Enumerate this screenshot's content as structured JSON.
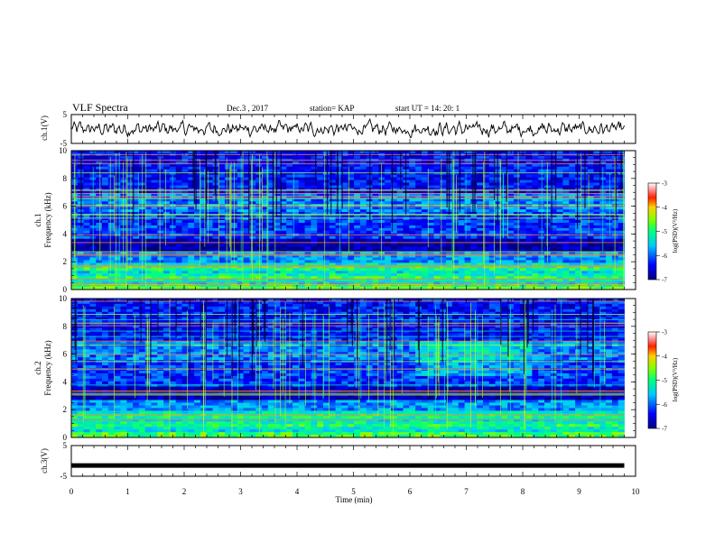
{
  "header": {
    "title": "VLF Spectra",
    "date": "Dec.3  , 2017",
    "station": "station= KAP",
    "start": "start  UT =   14: 20: 1"
  },
  "chart_data": [
    {
      "type": "line",
      "panel": "ch1-waveform",
      "ylabel": "ch.1(V)",
      "ylim": [
        -5,
        5
      ],
      "yticks": [
        "5",
        "-5"
      ],
      "xlim": [
        0,
        10
      ],
      "series_color": "#000000"
    },
    {
      "type": "heatmap",
      "panel": "ch1-spectrogram",
      "ylabel": "ch.1",
      "ylabel2": "Frequency (kHz)",
      "ylim": [
        0,
        10
      ],
      "yticks": [
        "0",
        "2",
        "4",
        "6",
        "8",
        "10"
      ],
      "xlim": [
        0,
        10
      ],
      "colorbar": {
        "label": "log(PSD)(V²/Hz)",
        "range": [
          -7,
          -3
        ],
        "ticks": [
          "-3",
          "-4",
          "-5",
          "-6",
          "-7"
        ]
      }
    },
    {
      "type": "heatmap",
      "panel": "ch2-spectrogram",
      "ylabel": "ch.2",
      "ylabel2": "Frequency (kHz)",
      "ylim": [
        0,
        10
      ],
      "yticks": [
        "0",
        "2",
        "4",
        "6",
        "8",
        "10"
      ],
      "xlim": [
        0,
        10
      ],
      "colorbar": {
        "label": "log(PSD)(V²/Hz)",
        "range": [
          -7,
          -3
        ],
        "ticks": [
          "-3",
          "-4",
          "-5",
          "-6",
          "-7"
        ]
      }
    },
    {
      "type": "line",
      "panel": "ch3-waveform",
      "ylabel": "ch.3(V)",
      "ylim": [
        -5,
        5
      ],
      "yticks": [
        "5",
        "-5"
      ],
      "xlim": [
        0,
        10
      ],
      "constant_value": -1.5
    }
  ],
  "xaxis": {
    "label": "Time (min)",
    "ticks": [
      "0",
      "1",
      "2",
      "3",
      "4",
      "5",
      "6",
      "7",
      "8",
      "9",
      "10"
    ]
  }
}
